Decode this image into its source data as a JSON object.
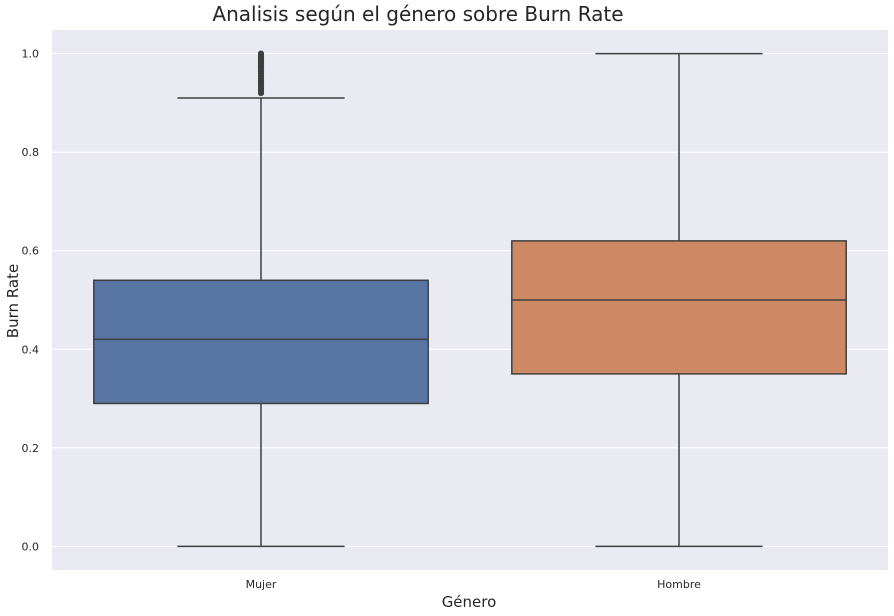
{
  "chart_data": {
    "type": "box",
    "title": "Analisis según el género sobre Burn Rate",
    "xlabel": "Género",
    "ylabel": "Burn Rate",
    "ylim": [
      -0.048,
      1.048
    ],
    "yticks": [
      "0.0",
      "0.2",
      "0.4",
      "0.6",
      "0.8",
      "1.0"
    ],
    "ytick_values": [
      0.0,
      0.2,
      0.4,
      0.6,
      0.8,
      1.0
    ],
    "grid": true,
    "categories": [
      "Mujer",
      "Hombre"
    ],
    "boxes": [
      {
        "category": "Mujer",
        "color": "#5875a4",
        "whisker_low": 0.0,
        "q1": 0.29,
        "median": 0.42,
        "q3": 0.54,
        "whisker_high": 0.91,
        "outliers": [
          0.92,
          0.925,
          0.93,
          0.935,
          0.94,
          0.945,
          0.95,
          0.955,
          0.96,
          0.965,
          0.97,
          0.975,
          0.98,
          0.985,
          0.99,
          0.995,
          1.0
        ]
      },
      {
        "category": "Hombre",
        "color": "#cc8963",
        "whisker_low": 0.0,
        "q1": 0.35,
        "median": 0.5,
        "q3": 0.62,
        "whisker_high": 1.0,
        "outliers": []
      }
    ],
    "colors": {
      "plot_background": "#eaeaf2",
      "grid": "#ffffff",
      "line": "#3f3f3f"
    }
  }
}
